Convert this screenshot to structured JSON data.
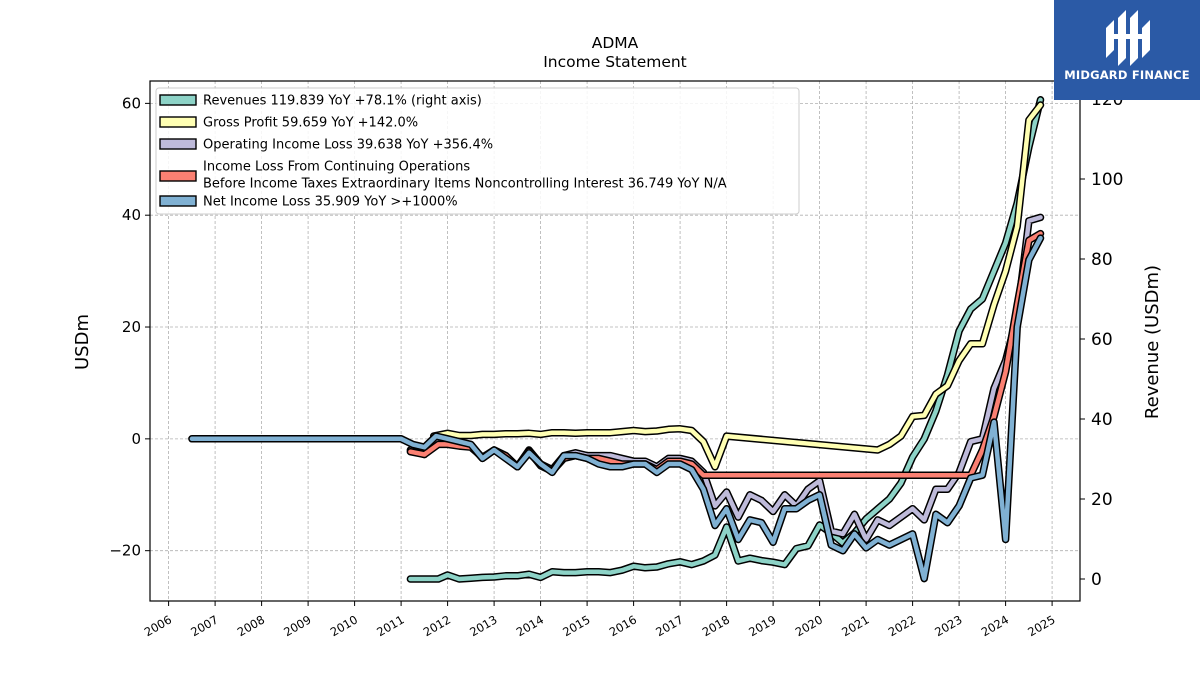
{
  "logo": {
    "text": "MIDGARD FINANCE",
    "icon": "midgard-logo-icon",
    "bg": "#2b5aa6"
  },
  "chart_data": {
    "type": "line",
    "title": "ADMA",
    "subtitle": "Income Statement",
    "ylabel": "USDm",
    "ylabel_right": "Revenue (USDm)",
    "ylim": [
      -29,
      64
    ],
    "ylim_right": [
      -5.5,
      124.5
    ],
    "xlim": [
      2005.6,
      2025.6
    ],
    "yticks": [
      -20,
      0,
      20,
      40,
      60
    ],
    "yticks_right": [
      0,
      20,
      40,
      60,
      80,
      100,
      120
    ],
    "xticks": [
      2006,
      2007,
      2008,
      2009,
      2010,
      2011,
      2012,
      2013,
      2014,
      2015,
      2016,
      2017,
      2018,
      2019,
      2020,
      2021,
      2022,
      2023,
      2024,
      2025
    ],
    "grid": true,
    "legend_position": "top-left",
    "series": [
      {
        "name": "Revenues  119.839 YoY +78.1% (right axis)",
        "color": "#8dd3c7",
        "axis": "right",
        "points": [
          [
            2011.2,
            0
          ],
          [
            2011.5,
            0
          ],
          [
            2011.8,
            0
          ],
          [
            2012.0,
            1
          ],
          [
            2012.25,
            0
          ],
          [
            2012.5,
            0.2
          ],
          [
            2012.75,
            0.4
          ],
          [
            2013.0,
            0.5
          ],
          [
            2013.25,
            0.8
          ],
          [
            2013.5,
            0.8
          ],
          [
            2013.75,
            1.2
          ],
          [
            2014.0,
            0.4
          ],
          [
            2014.25,
            1.8
          ],
          [
            2014.5,
            1.6
          ],
          [
            2014.75,
            1.6
          ],
          [
            2015.0,
            1.8
          ],
          [
            2015.25,
            1.8
          ],
          [
            2015.5,
            1.6
          ],
          [
            2015.75,
            2.2
          ],
          [
            2016.0,
            3.2
          ],
          [
            2016.25,
            2.8
          ],
          [
            2016.5,
            3
          ],
          [
            2016.75,
            3.8
          ],
          [
            2017.0,
            4.3
          ],
          [
            2017.25,
            3.6
          ],
          [
            2017.5,
            4.5
          ],
          [
            2017.75,
            6
          ],
          [
            2018.0,
            13
          ],
          [
            2018.25,
            4.5
          ],
          [
            2018.5,
            5.2
          ],
          [
            2018.75,
            4.6
          ],
          [
            2019.0,
            4.2
          ],
          [
            2019.25,
            3.6
          ],
          [
            2019.5,
            7.6
          ],
          [
            2019.75,
            8.3
          ],
          [
            2020.0,
            13.5
          ],
          [
            2020.25,
            11.5
          ],
          [
            2020.5,
            9
          ],
          [
            2020.75,
            11.5
          ],
          [
            2021.0,
            15
          ],
          [
            2021.25,
            17.5
          ],
          [
            2021.5,
            20
          ],
          [
            2021.75,
            24
          ],
          [
            2022.0,
            30.5
          ],
          [
            2022.25,
            35
          ],
          [
            2022.5,
            42
          ],
          [
            2022.75,
            51
          ],
          [
            2023.0,
            62
          ],
          [
            2023.25,
            67.5
          ],
          [
            2023.5,
            70
          ],
          [
            2023.75,
            77
          ],
          [
            2024.0,
            84
          ],
          [
            2024.25,
            94
          ],
          [
            2024.5,
            108
          ],
          [
            2024.75,
            119.8
          ]
        ]
      },
      {
        "name": "Gross Profit  59.659 YoY +142.0%",
        "color": "#ffffb3",
        "axis": "left",
        "points": [
          [
            2011.7,
            0.5
          ],
          [
            2012.0,
            1
          ],
          [
            2012.25,
            0.6
          ],
          [
            2012.5,
            0.6
          ],
          [
            2012.75,
            0.8
          ],
          [
            2013.0,
            0.8
          ],
          [
            2013.25,
            0.9
          ],
          [
            2013.5,
            0.9
          ],
          [
            2013.75,
            1.0
          ],
          [
            2014.0,
            0.8
          ],
          [
            2014.25,
            1.1
          ],
          [
            2014.5,
            1.1
          ],
          [
            2014.75,
            1.0
          ],
          [
            2015.0,
            1.1
          ],
          [
            2015.25,
            1.1
          ],
          [
            2015.5,
            1.1
          ],
          [
            2015.75,
            1.3
          ],
          [
            2016.0,
            1.5
          ],
          [
            2016.25,
            1.3
          ],
          [
            2016.5,
            1.4
          ],
          [
            2016.75,
            1.7
          ],
          [
            2017.0,
            1.8
          ],
          [
            2017.25,
            1.5
          ],
          [
            2017.5,
            -0.5
          ],
          [
            2017.75,
            -5
          ],
          [
            2018.0,
            0.5
          ],
          [
            2021.25,
            -2
          ],
          [
            2021.5,
            -1
          ],
          [
            2021.75,
            0.5
          ],
          [
            2022.0,
            4
          ],
          [
            2022.25,
            4.2
          ],
          [
            2022.5,
            8
          ],
          [
            2022.75,
            9.5
          ],
          [
            2023.0,
            14
          ],
          [
            2023.25,
            17
          ],
          [
            2023.5,
            17
          ],
          [
            2023.75,
            24
          ],
          [
            2024.0,
            30
          ],
          [
            2024.25,
            38
          ],
          [
            2024.5,
            57
          ],
          [
            2024.75,
            59.7
          ]
        ]
      },
      {
        "name": "Operating Income Loss  39.638 YoY +356.4%",
        "color": "#bebada",
        "axis": "left",
        "points": [
          [
            2011.2,
            -2
          ],
          [
            2011.5,
            -2.8
          ],
          [
            2011.7,
            -0.5
          ],
          [
            2012.0,
            -0.5
          ],
          [
            2012.25,
            -1
          ],
          [
            2012.5,
            -1.2
          ],
          [
            2012.75,
            -3.5
          ],
          [
            2013.0,
            -2
          ],
          [
            2013.25,
            -3
          ],
          [
            2013.5,
            -5
          ],
          [
            2013.75,
            -2
          ],
          [
            2014.0,
            -4.5
          ],
          [
            2014.25,
            -5.5
          ],
          [
            2014.5,
            -3
          ],
          [
            2014.75,
            -2.5
          ],
          [
            2015.0,
            -3
          ],
          [
            2015.25,
            -3
          ],
          [
            2015.5,
            -3
          ],
          [
            2015.75,
            -3.5
          ],
          [
            2016.0,
            -4
          ],
          [
            2016.25,
            -4
          ],
          [
            2016.5,
            -5
          ],
          [
            2016.75,
            -3.5
          ],
          [
            2017.0,
            -3.5
          ],
          [
            2017.25,
            -4
          ],
          [
            2017.5,
            -6
          ],
          [
            2017.75,
            -12
          ],
          [
            2018.0,
            -9.5
          ],
          [
            2018.25,
            -14
          ],
          [
            2018.5,
            -10
          ],
          [
            2018.75,
            -11
          ],
          [
            2019.0,
            -13
          ],
          [
            2019.25,
            -10
          ],
          [
            2019.5,
            -12
          ],
          [
            2019.75,
            -9
          ],
          [
            2020.0,
            -7.5
          ],
          [
            2020.25,
            -16.5
          ],
          [
            2020.5,
            -17
          ],
          [
            2020.75,
            -13.5
          ],
          [
            2021.0,
            -18
          ],
          [
            2021.25,
            -14.5
          ],
          [
            2021.5,
            -15.5
          ],
          [
            2021.75,
            -14
          ],
          [
            2022.0,
            -12.5
          ],
          [
            2022.25,
            -14.5
          ],
          [
            2022.5,
            -9
          ],
          [
            2022.75,
            -9
          ],
          [
            2023.0,
            -6
          ],
          [
            2023.25,
            -0.5
          ],
          [
            2023.5,
            0
          ],
          [
            2023.75,
            9
          ],
          [
            2024.0,
            14
          ],
          [
            2024.25,
            22
          ],
          [
            2024.5,
            39
          ],
          [
            2024.75,
            39.6
          ]
        ]
      },
      {
        "name": "Income Loss From Continuing Operations\nBefore Income Taxes Extraordinary Items Noncontrolling Interest  36.749 YoY N/A",
        "color": "#fb8072",
        "axis": "left",
        "points": [
          [
            2011.2,
            -2.3
          ],
          [
            2011.5,
            -2.8
          ],
          [
            2011.8,
            -1
          ],
          [
            2012.0,
            -1
          ],
          [
            2012.25,
            -1.3
          ],
          [
            2012.5,
            -1.5
          ],
          [
            2012.75,
            -3.3
          ],
          [
            2013.0,
            -2
          ],
          [
            2013.25,
            -3
          ],
          [
            2013.5,
            -5
          ],
          [
            2013.75,
            -2.2
          ],
          [
            2014.0,
            -4.8
          ],
          [
            2014.25,
            -5.8
          ],
          [
            2014.5,
            -3.5
          ],
          [
            2014.75,
            -3
          ],
          [
            2015.0,
            -3.5
          ],
          [
            2015.25,
            -3.5
          ],
          [
            2015.5,
            -4
          ],
          [
            2015.75,
            -4.5
          ],
          [
            2016.0,
            -4.5
          ],
          [
            2016.25,
            -4.5
          ],
          [
            2016.5,
            -5.5
          ],
          [
            2016.75,
            -4
          ],
          [
            2017.0,
            -4
          ],
          [
            2017.25,
            -4.5
          ],
          [
            2017.5,
            -6.5
          ],
          [
            2023.25,
            -6.5
          ],
          [
            2023.5,
            -2
          ],
          [
            2023.75,
            4
          ],
          [
            2024.0,
            12
          ],
          [
            2024.25,
            24
          ],
          [
            2024.5,
            35.5
          ],
          [
            2024.75,
            36.7
          ]
        ]
      },
      {
        "name": "Net Income Loss  35.909 YoY >+1000%",
        "color": "#80b1d3",
        "axis": "left",
        "points": [
          [
            2006.5,
            0
          ],
          [
            2011.0,
            0
          ],
          [
            2011.25,
            -1
          ],
          [
            2011.5,
            -1.5
          ],
          [
            2011.75,
            0.5
          ],
          [
            2012.0,
            0
          ],
          [
            2012.25,
            -0.5
          ],
          [
            2012.5,
            -1
          ],
          [
            2012.75,
            -3.5
          ],
          [
            2013.0,
            -2
          ],
          [
            2013.25,
            -3.5
          ],
          [
            2013.5,
            -5
          ],
          [
            2013.75,
            -2.5
          ],
          [
            2014.0,
            -4.5
          ],
          [
            2014.25,
            -6
          ],
          [
            2014.5,
            -3
          ],
          [
            2014.75,
            -3
          ],
          [
            2015.0,
            -3.5
          ],
          [
            2015.25,
            -4.5
          ],
          [
            2015.5,
            -5
          ],
          [
            2015.75,
            -5
          ],
          [
            2016.0,
            -4.5
          ],
          [
            2016.25,
            -4.5
          ],
          [
            2016.5,
            -6
          ],
          [
            2016.75,
            -4.5
          ],
          [
            2017.0,
            -4.5
          ],
          [
            2017.25,
            -5.5
          ],
          [
            2017.5,
            -9
          ],
          [
            2017.75,
            -15.5
          ],
          [
            2018.0,
            -12.5
          ],
          [
            2018.25,
            -18
          ],
          [
            2018.5,
            -14.5
          ],
          [
            2018.75,
            -15
          ],
          [
            2019.0,
            -18.5
          ],
          [
            2019.25,
            -12.5
          ],
          [
            2019.5,
            -12.5
          ],
          [
            2019.75,
            -11
          ],
          [
            2020.0,
            -10
          ],
          [
            2020.25,
            -19
          ],
          [
            2020.5,
            -20
          ],
          [
            2020.75,
            -17
          ],
          [
            2021.0,
            -19.5
          ],
          [
            2021.25,
            -18
          ],
          [
            2021.5,
            -19
          ],
          [
            2021.75,
            -18
          ],
          [
            2022.0,
            -17
          ],
          [
            2022.25,
            -25
          ],
          [
            2022.5,
            -13.5
          ],
          [
            2022.75,
            -15
          ],
          [
            2023.0,
            -12
          ],
          [
            2023.25,
            -7
          ],
          [
            2023.5,
            -6.5
          ],
          [
            2023.75,
            3
          ],
          [
            2024.0,
            -18
          ],
          [
            2024.25,
            20
          ],
          [
            2024.5,
            32
          ],
          [
            2024.75,
            35.9
          ]
        ]
      }
    ]
  }
}
